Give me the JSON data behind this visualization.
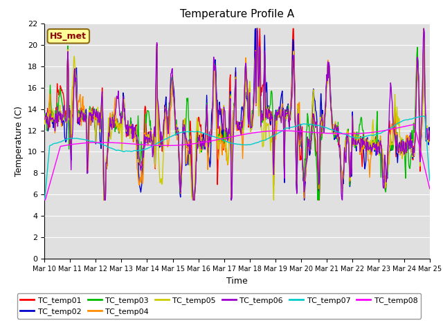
{
  "title": "Temperature Profile A",
  "xlabel": "Time",
  "ylabel": "Temperature (C)",
  "ylim": [
    0,
    22
  ],
  "yticks": [
    0,
    2,
    4,
    6,
    8,
    10,
    12,
    14,
    16,
    18,
    20,
    22
  ],
  "xtick_labels": [
    "Mar 10",
    "Mar 11",
    "Mar 12",
    "Mar 13",
    "Mar 14",
    "Mar 15",
    "Mar 16",
    "Mar 17",
    "Mar 18",
    "Mar 19",
    "Mar 20",
    "Mar 21",
    "Mar 22",
    "Mar 23",
    "Mar 24",
    "Mar 25"
  ],
  "annotation_text": "HS_met",
  "annotation_color": "#8B0000",
  "annotation_bg": "#FFFF99",
  "annotation_edge": "#8B6914",
  "series": [
    {
      "name": "TC_temp01",
      "color": "#FF0000"
    },
    {
      "name": "TC_temp02",
      "color": "#0000CC"
    },
    {
      "name": "TC_temp03",
      "color": "#00BB00"
    },
    {
      "name": "TC_temp04",
      "color": "#FF8C00"
    },
    {
      "name": "TC_temp05",
      "color": "#CCCC00"
    },
    {
      "name": "TC_temp06",
      "color": "#9900CC"
    },
    {
      "name": "TC_temp07",
      "color": "#00CCCC"
    },
    {
      "name": "TC_temp08",
      "color": "#FF00FF"
    }
  ],
  "grid_color": "#FFFFFF",
  "bg_color": "#E0E0E0",
  "fig_facecolor": "#FFFFFF",
  "title_fontsize": 11,
  "axis_label_fontsize": 9,
  "tick_fontsize": 8,
  "legend_fontsize": 8,
  "lw": 1.0
}
